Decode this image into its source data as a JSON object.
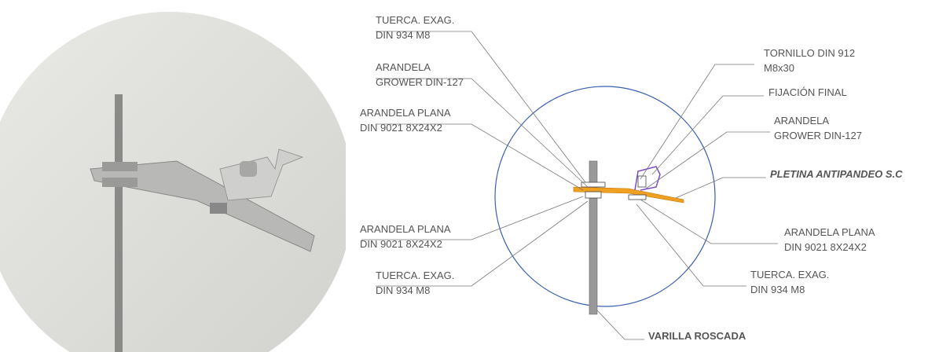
{
  "labels": [
    {
      "lines": [
        "TUERCA. EXAG.",
        "DIN 934  M8"
      ]
    },
    {
      "lines": [
        "ARANDELA",
        "GROWER DIN-127"
      ]
    },
    {
      "lines": [
        "ARANDELA PLANA",
        "DIN 9021 8X24X2"
      ]
    },
    {
      "lines": [
        "ARANDELA PLANA",
        "DIN 9021 8X24X2"
      ]
    },
    {
      "lines": [
        "TUERCA. EXAG.",
        "DIN 934  M8"
      ]
    },
    {
      "lines": [
        "TORNILLO DIN 912",
        "M8x30"
      ]
    },
    {
      "lines": [
        "FIJACIÓN FINAL"
      ]
    },
    {
      "lines": [
        "ARANDELA",
        "GROWER DIN-127"
      ]
    },
    {
      "lines": [
        "PLETINA ANTIPANDEO S.C"
      ]
    },
    {
      "lines": [
        "ARANDELA PLANA",
        "DIN 9021 8X24X2"
      ]
    },
    {
      "lines": [
        "TUERCA. EXAG.",
        "DIN 934  M8"
      ]
    },
    {
      "lines": [
        "VARILLA ROSCADA"
      ]
    }
  ]
}
